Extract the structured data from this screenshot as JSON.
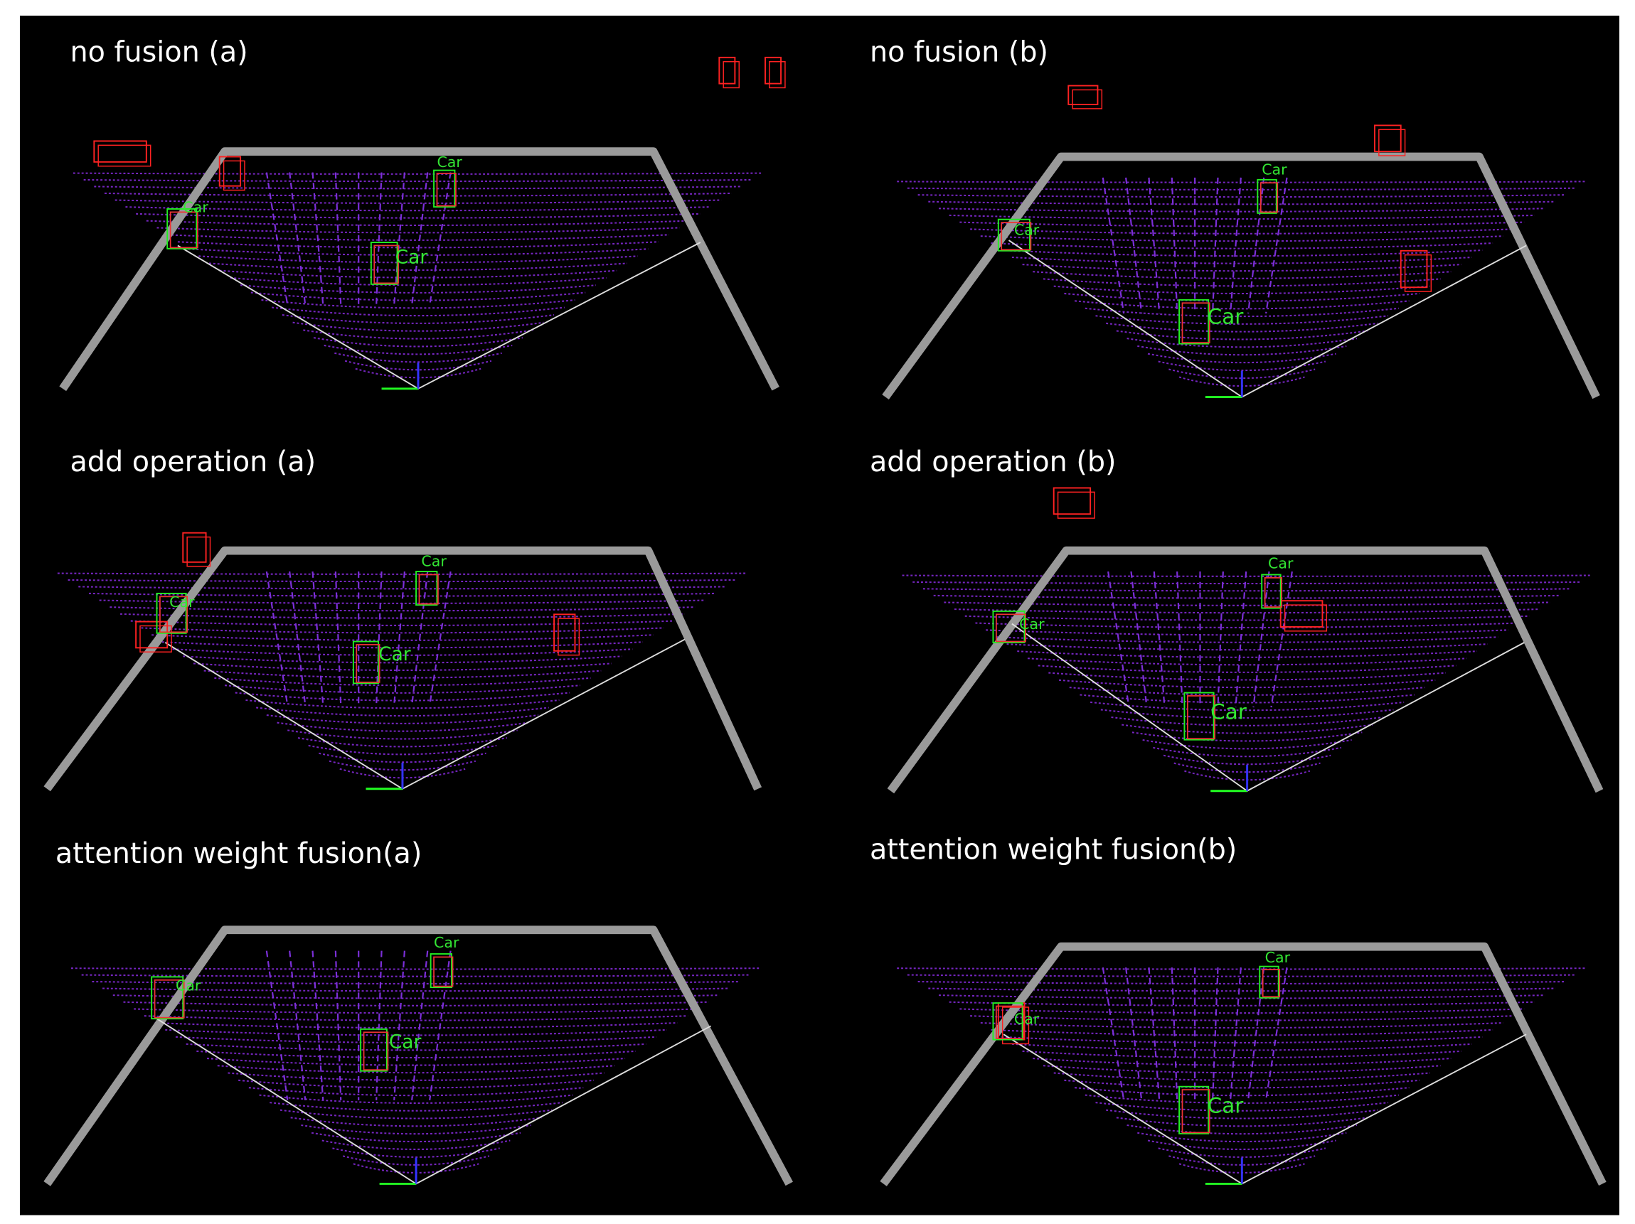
{
  "panels": [
    {
      "title": "no fusion (a)",
      "labels": [
        "Car",
        "Car",
        "Car"
      ]
    },
    {
      "title": "no fusion (b)",
      "labels": [
        "Car",
        "Car",
        "Car"
      ]
    },
    {
      "title": "add operation (a)",
      "labels": [
        "Car",
        "Car",
        "Car"
      ]
    },
    {
      "title": "add operation (b)",
      "labels": [
        "Car",
        "Car",
        "Car"
      ]
    },
    {
      "title": "attention weight fusion(a)",
      "labels": [
        "Car",
        "Car",
        "Car"
      ]
    },
    {
      "title": "attention weight fusion(b)",
      "labels": [
        "Car",
        "Car",
        "Car"
      ]
    }
  ]
}
